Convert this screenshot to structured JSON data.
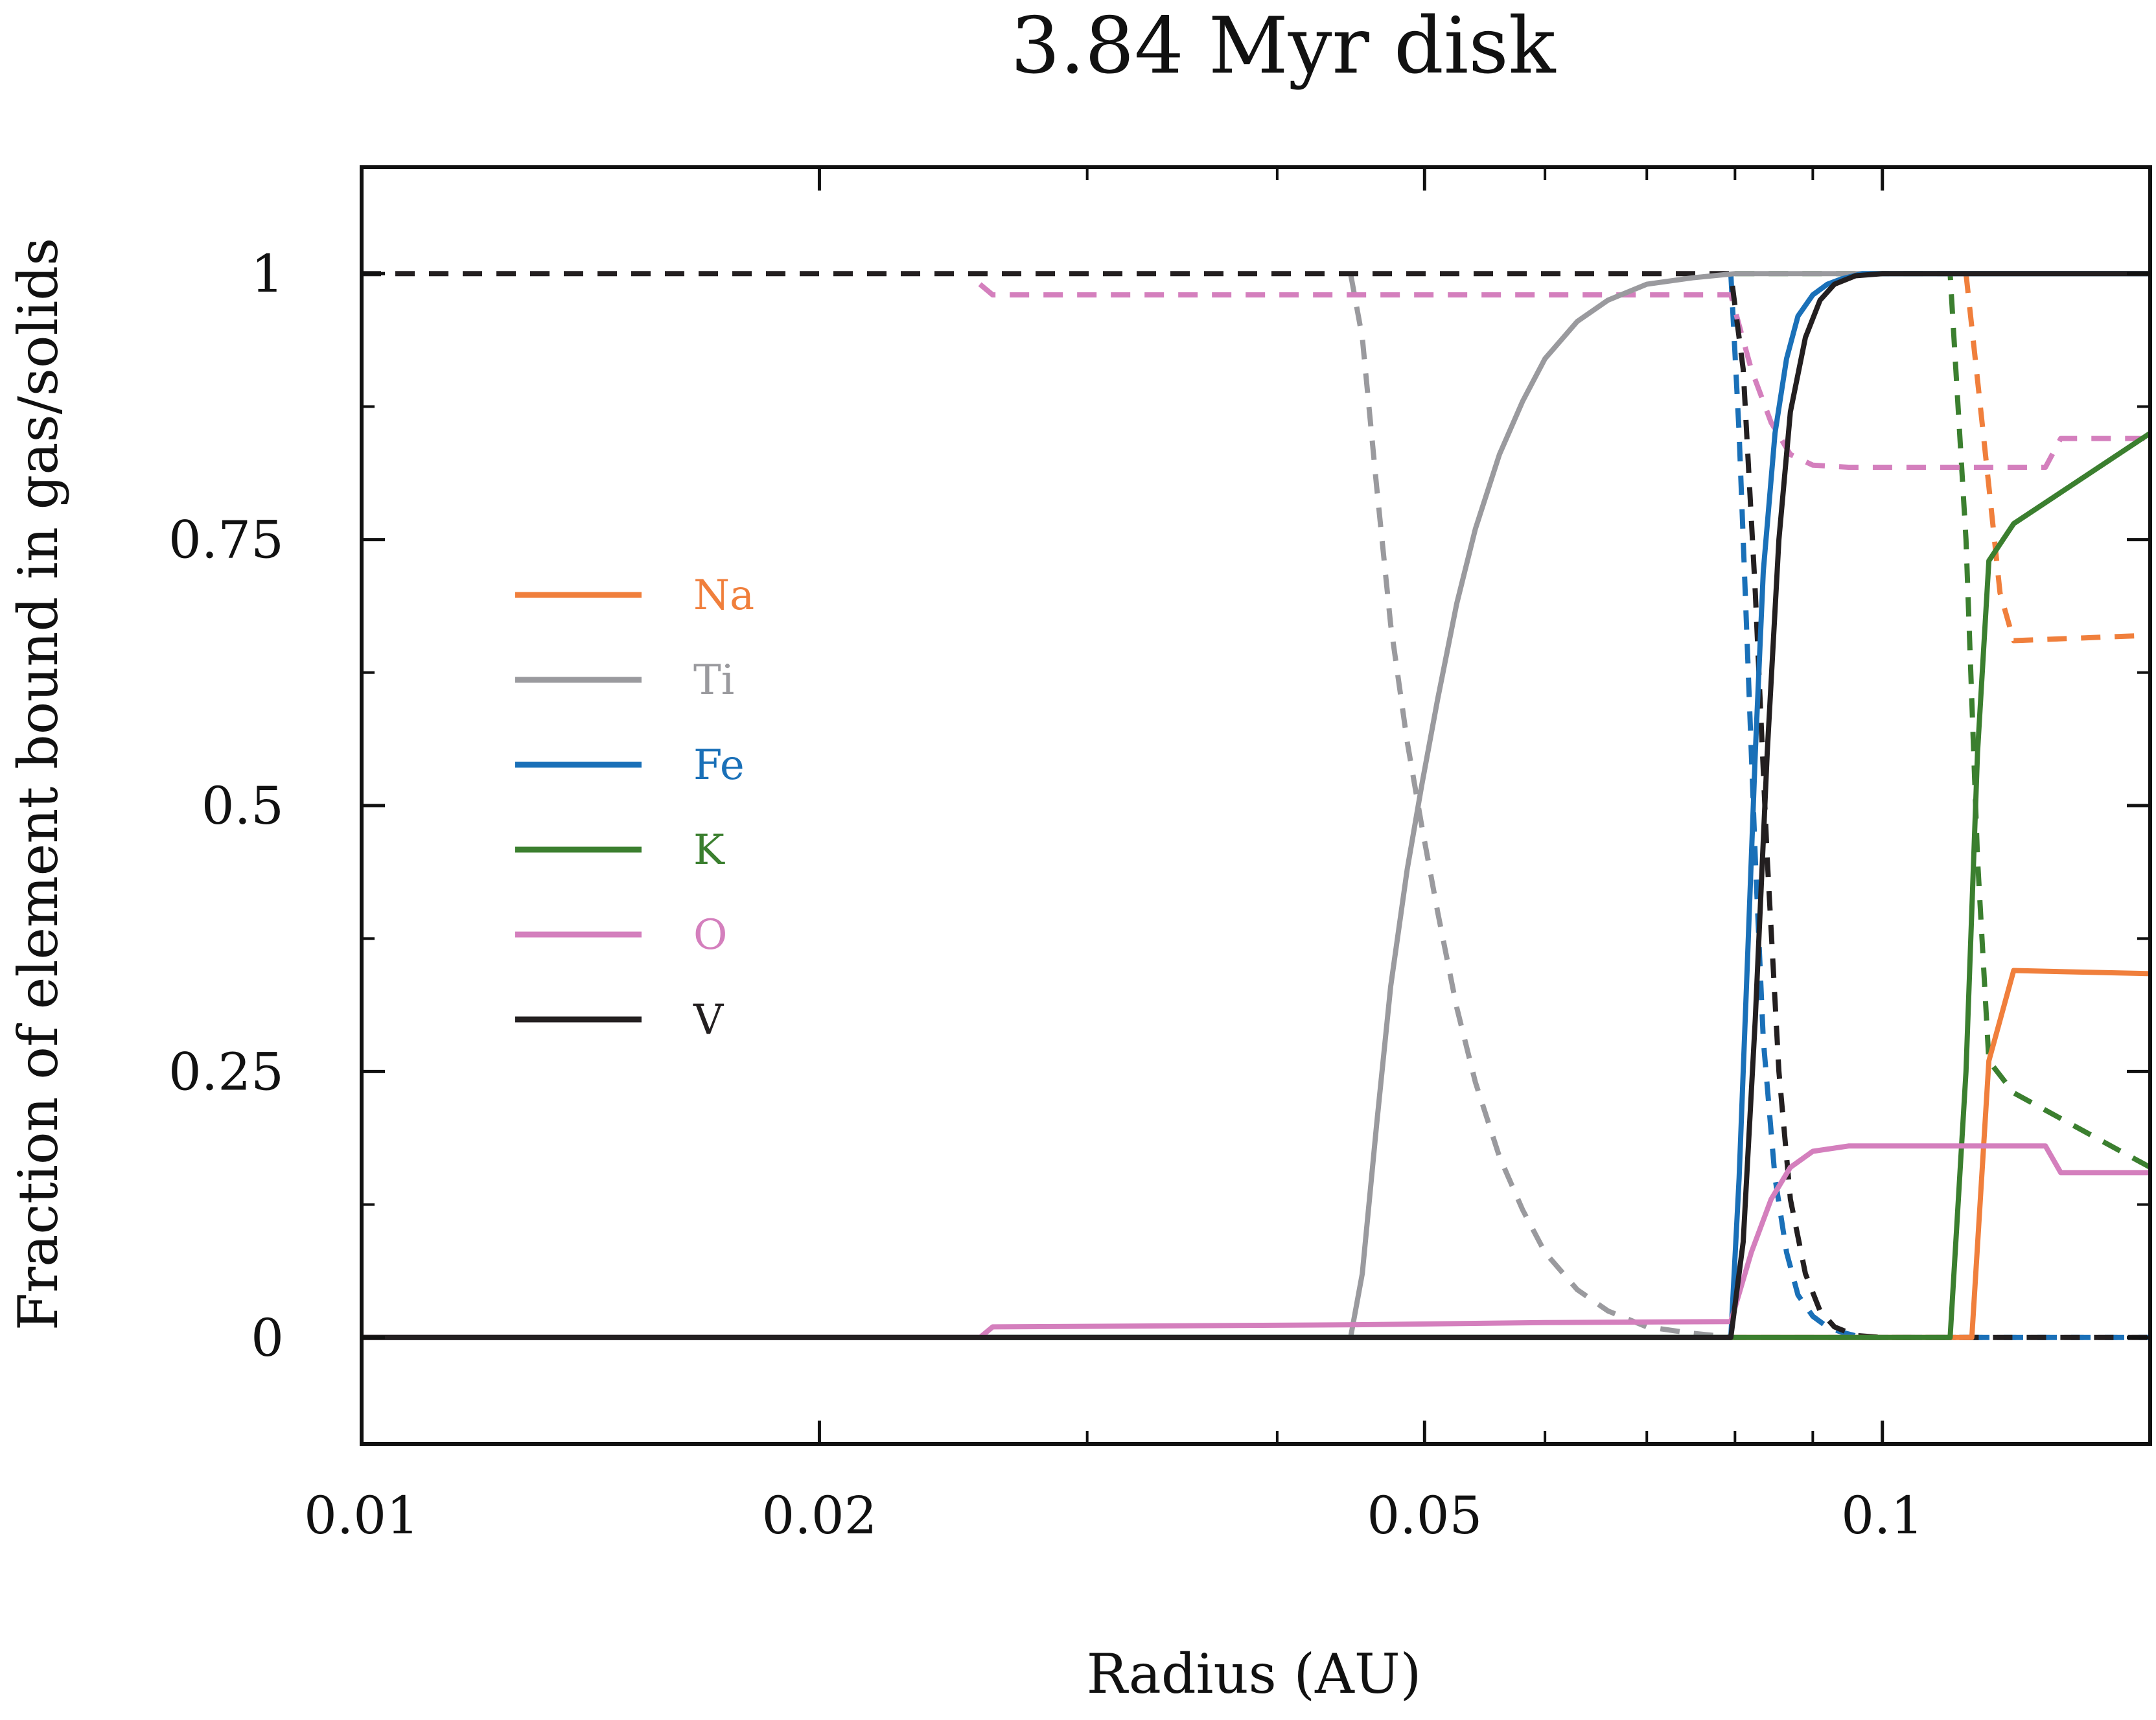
{
  "chart_data": {
    "type": "line",
    "title": "3.84 Myr disk",
    "xlabel": "Radius (AU)",
    "ylabel": "Fraction of element bound in gas/solids",
    "xscale": "log",
    "xlim": [
      0.01,
      0.15
    ],
    "ylim": [
      -0.1,
      1.1
    ],
    "xticks": [
      {
        "value": 0.01,
        "label": "0.01"
      },
      {
        "value": 0.02,
        "label": "0.02"
      },
      {
        "value": 0.05,
        "label": "0.05"
      },
      {
        "value": 0.1,
        "label": "0.1"
      }
    ],
    "xminor": [
      0.03,
      0.04,
      0.06,
      0.07,
      0.08,
      0.09
    ],
    "yticks": [
      {
        "value": 0,
        "label": "0"
      },
      {
        "value": 0.25,
        "label": "0.25"
      },
      {
        "value": 0.5,
        "label": "0.5"
      },
      {
        "value": 0.75,
        "label": "0.75"
      },
      {
        "value": 1,
        "label": "1"
      }
    ],
    "yminor": [
      0.125,
      0.375,
      0.625,
      0.875
    ],
    "legend": {
      "placement": "center-left",
      "entries": [
        "Na",
        "Ti",
        "Fe",
        "K",
        "O",
        "V"
      ]
    },
    "grid": false,
    "series": [
      {
        "name": "Na",
        "color": "#f07f3c",
        "style": "solid",
        "x": [
          0.01,
          0.1145,
          0.1175,
          0.122,
          0.15
        ],
        "y": [
          0,
          0,
          0.26,
          0.345,
          0.342
        ]
      },
      {
        "name": "Na",
        "color": "#f07f3c",
        "style": "dashed",
        "x": [
          0.1135,
          0.1155,
          0.1175,
          0.1195,
          0.122,
          0.15
        ],
        "y": [
          1.0,
          0.9,
          0.8,
          0.7,
          0.655,
          0.66
        ]
      },
      {
        "name": "Ti",
        "color": "#9a9a9e",
        "style": "solid",
        "x": [
          0.01,
          0.0447,
          0.0455,
          0.0465,
          0.0475,
          0.0487,
          0.0498,
          0.051,
          0.0525,
          0.054,
          0.056,
          0.058,
          0.06,
          0.063,
          0.066,
          0.07,
          0.075,
          0.08,
          0.15
        ],
        "y": [
          0,
          0,
          0.06,
          0.2,
          0.33,
          0.44,
          0.52,
          0.6,
          0.69,
          0.76,
          0.83,
          0.88,
          0.92,
          0.955,
          0.975,
          0.99,
          0.996,
          1.0,
          1.0
        ]
      },
      {
        "name": "Ti",
        "color": "#9a9a9e",
        "style": "dashed",
        "x": [
          0.0447,
          0.0455,
          0.0465,
          0.0475,
          0.0487,
          0.0498,
          0.051,
          0.0525,
          0.054,
          0.056,
          0.058,
          0.06,
          0.063,
          0.066,
          0.07,
          0.075,
          0.08,
          0.15
        ],
        "y": [
          1.0,
          0.94,
          0.8,
          0.67,
          0.56,
          0.48,
          0.4,
          0.31,
          0.24,
          0.17,
          0.12,
          0.08,
          0.045,
          0.025,
          0.01,
          0.004,
          0,
          0
        ]
      },
      {
        "name": "Fe",
        "color": "#1a70b8",
        "style": "solid",
        "x": [
          0.01,
          0.0795,
          0.0805,
          0.0815,
          0.0825,
          0.0835,
          0.085,
          0.0865,
          0.088,
          0.09,
          0.092,
          0.094,
          0.097,
          0.1,
          0.15
        ],
        "y": [
          0,
          0,
          0.15,
          0.35,
          0.55,
          0.72,
          0.85,
          0.92,
          0.96,
          0.98,
          0.99,
          0.995,
          1.0,
          1.0,
          1.0
        ]
      },
      {
        "name": "Fe",
        "color": "#1a70b8",
        "style": "dashed",
        "x": [
          0.0795,
          0.0805,
          0.0815,
          0.0825,
          0.0835,
          0.085,
          0.0865,
          0.088,
          0.09,
          0.092,
          0.094,
          0.097,
          0.1,
          0.15
        ],
        "y": [
          1.0,
          0.85,
          0.65,
          0.45,
          0.28,
          0.15,
          0.08,
          0.04,
          0.02,
          0.01,
          0.005,
          0,
          0,
          0
        ]
      },
      {
        "name": "K",
        "color": "#3b7f2f",
        "style": "solid",
        "x": [
          0.01,
          0.1108,
          0.1135,
          0.1155,
          0.1175,
          0.122,
          0.15
        ],
        "y": [
          0,
          0,
          0.25,
          0.55,
          0.73,
          0.765,
          0.85
        ]
      },
      {
        "name": "K",
        "color": "#3b7f2f",
        "style": "dashed",
        "x": [
          0.08,
          0.1,
          0.1108,
          0.1135,
          0.1155,
          0.1175,
          0.122,
          0.15
        ],
        "y": [
          1.0,
          1.0,
          1.0,
          0.75,
          0.45,
          0.26,
          0.23,
          0.16
        ]
      },
      {
        "name": "O",
        "color": "#d47fbd",
        "style": "solid",
        "x": [
          0.01,
          0.0255,
          0.026,
          0.045,
          0.06,
          0.0795,
          0.082,
          0.0845,
          0.087,
          0.09,
          0.095,
          0.1,
          0.128,
          0.131,
          0.15
        ],
        "y": [
          0,
          0,
          0.01,
          0.012,
          0.014,
          0.015,
          0.08,
          0.13,
          0.16,
          0.175,
          0.18,
          0.18,
          0.18,
          0.155,
          0.155
        ]
      },
      {
        "name": "O",
        "color": "#d47fbd",
        "style": "dashed",
        "x": [
          0.0255,
          0.026,
          0.045,
          0.06,
          0.0795,
          0.082,
          0.0845,
          0.087,
          0.09,
          0.095,
          0.1,
          0.128,
          0.131,
          0.15
        ],
        "y": [
          0.99,
          0.98,
          0.98,
          0.98,
          0.98,
          0.91,
          0.86,
          0.83,
          0.82,
          0.818,
          0.818,
          0.818,
          0.845,
          0.845
        ]
      },
      {
        "name": "V",
        "color": "#231f20",
        "style": "solid",
        "x": [
          0.01,
          0.0795,
          0.081,
          0.0825,
          0.084,
          0.0855,
          0.087,
          0.089,
          0.091,
          0.093,
          0.096,
          0.1,
          0.15
        ],
        "y": [
          0,
          0,
          0.09,
          0.3,
          0.55,
          0.75,
          0.87,
          0.94,
          0.975,
          0.99,
          0.998,
          1.0,
          1.0
        ]
      },
      {
        "name": "V",
        "color": "#231f20",
        "style": "dashed",
        "x": [
          0.01,
          0.0795,
          0.081,
          0.0825,
          0.084,
          0.0855,
          0.087,
          0.089,
          0.091,
          0.093,
          0.096,
          0.1,
          0.15
        ],
        "y": [
          1.0,
          1.0,
          0.91,
          0.7,
          0.45,
          0.25,
          0.13,
          0.06,
          0.025,
          0.01,
          0.002,
          0,
          0
        ]
      }
    ]
  }
}
